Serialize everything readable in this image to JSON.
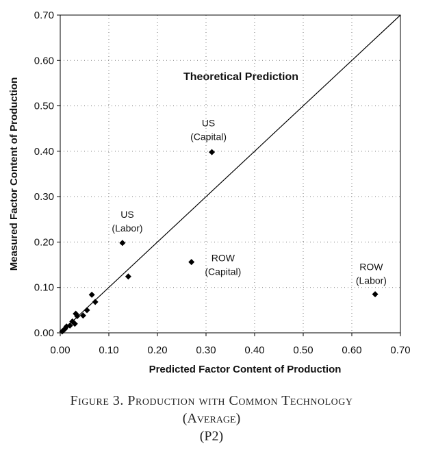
{
  "chart_data": {
    "type": "scatter",
    "xlabel": "Predicted Factor Content of Production",
    "ylabel": "Measured Factor Content of Production",
    "xlim": [
      0,
      0.7
    ],
    "ylim": [
      0,
      0.7
    ],
    "x_ticks": [
      "0.00",
      "0.10",
      "0.20",
      "0.30",
      "0.40",
      "0.50",
      "0.60",
      "0.70"
    ],
    "y_ticks": [
      "0.00",
      "0.10",
      "0.20",
      "0.30",
      "0.40",
      "0.50",
      "0.60",
      "0.70"
    ],
    "grid": "dotted horizontal and vertical",
    "reference_line": {
      "label": "Theoretical Prediction",
      "from": [
        0,
        0
      ],
      "to": [
        0.7,
        0.7
      ]
    },
    "points": [
      {
        "x": 0.312,
        "y": 0.398
      },
      {
        "x": 0.128,
        "y": 0.198
      },
      {
        "x": 0.27,
        "y": 0.156
      },
      {
        "x": 0.648,
        "y": 0.085
      },
      {
        "x": 0.14,
        "y": 0.124
      },
      {
        "x": 0.065,
        "y": 0.084
      },
      {
        "x": 0.072,
        "y": 0.068
      },
      {
        "x": 0.055,
        "y": 0.05
      },
      {
        "x": 0.047,
        "y": 0.038
      },
      {
        "x": 0.032,
        "y": 0.042
      },
      {
        "x": 0.035,
        "y": 0.037
      },
      {
        "x": 0.025,
        "y": 0.025
      },
      {
        "x": 0.03,
        "y": 0.02
      },
      {
        "x": 0.02,
        "y": 0.016
      },
      {
        "x": 0.013,
        "y": 0.014
      },
      {
        "x": 0.01,
        "y": 0.009
      },
      {
        "x": 0.007,
        "y": 0.006
      },
      {
        "x": 0.004,
        "y": 0.003
      }
    ],
    "annotations": [
      {
        "lines": [
          "US",
          "(Capital)"
        ],
        "x": 0.305,
        "y": 0.4545
      },
      {
        "lines": [
          "US",
          "(Labor)"
        ],
        "x": 0.138,
        "y": 0.2535
      },
      {
        "lines": [
          "ROW",
          "(Capital)"
        ],
        "x": 0.335,
        "y": 0.158
      },
      {
        "lines": [
          "ROW",
          "(Labor)"
        ],
        "x": 0.64,
        "y": 0.138
      }
    ]
  },
  "caption": {
    "line1": "Figure 3. Production with Common Technology",
    "line2": "(Average)",
    "line3": "(P2)"
  }
}
